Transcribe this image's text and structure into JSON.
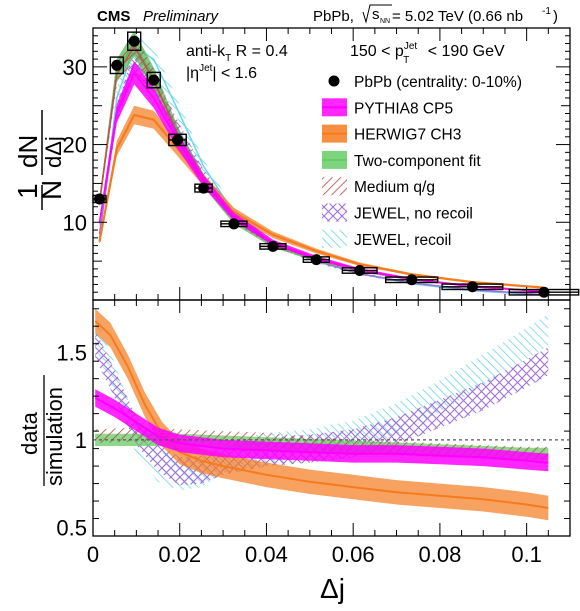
{
  "header": {
    "experiment": "CMS",
    "status": "Preliminary",
    "dataset_prefix": "PbPb, ",
    "sqrt_s": "s",
    "sqrt_s_sub": "NN",
    "energy_lumi": " = 5.02 TeV (0.66 nb",
    "lumi_exp": "-1",
    "close_paren": ")"
  },
  "annotations": {
    "algo_pre": "anti-k",
    "algo_sub": "T",
    "algo_post": " R = 0.4",
    "eta_pre": "|η",
    "eta_sup": "Jet",
    "eta_post": "| < 1.6",
    "pt_pre": "150 < p",
    "pt_sup": "Jet",
    "pt_sub": "T",
    "pt_post": " < 190 GeV"
  },
  "legend": [
    {
      "label": "PbPb (centrality: 0-10%)",
      "style": "marker",
      "color": "#000000"
    },
    {
      "label": "PYTHIA8 CP5",
      "style": "band",
      "color": "#ff00ff"
    },
    {
      "label": "HERWIG7 CH3",
      "style": "band",
      "color": "#f57b1e"
    },
    {
      "label": "Two-component fit",
      "style": "band",
      "color": "#66cc66"
    },
    {
      "label": "Medium q/g",
      "style": "hatch-diag",
      "color": "#b84a4a"
    },
    {
      "label": "JEWEL, no recoil",
      "style": "hatch-cross",
      "color": "#a070d8"
    },
    {
      "label": "JEWEL, recoil",
      "style": "hatch-diag",
      "color": "#6ad6ea"
    }
  ],
  "chart_data": [
    {
      "type": "line",
      "panel": "distribution",
      "ylabel_num": "1",
      "ylabel_den": "N",
      "ylabel_dnum": "dN",
      "ylabel_dden": "dΔj",
      "xlim": [
        0,
        0.11
      ],
      "ylim": [
        0,
        35
      ],
      "yticks": [
        10,
        20,
        30
      ],
      "data_x": [
        0.0015,
        0.0055,
        0.0095,
        0.014,
        0.0195,
        0.0255,
        0.0325,
        0.0415,
        0.0515,
        0.0615,
        0.0735,
        0.0875,
        0.104
      ],
      "data_xerr": [
        0.0015,
        0.0015,
        0.0015,
        0.0015,
        0.002,
        0.002,
        0.003,
        0.003,
        0.003,
        0.004,
        0.006,
        0.007,
        0.008
      ],
      "data_y": [
        13.0,
        30.2,
        33.3,
        28.3,
        20.6,
        14.4,
        9.8,
        6.9,
        5.2,
        3.8,
        2.6,
        1.7,
        1.0
      ],
      "series": [
        {
          "name": "PYTHIA8 CP5",
          "color": "#ff00ff",
          "x": [
            0.0015,
            0.0055,
            0.0095,
            0.014,
            0.0195,
            0.0255,
            0.0325,
            0.0415,
            0.0515,
            0.0615,
            0.0735,
            0.0875,
            0.104
          ],
          "y": [
            10.0,
            24.0,
            29.2,
            26.0,
            20.5,
            15.3,
            10.7,
            7.4,
            5.4,
            3.9,
            2.7,
            1.7,
            1.1
          ]
        },
        {
          "name": "HERWIG7 CH3",
          "color": "#f57b1e",
          "x": [
            0.0015,
            0.0055,
            0.0095,
            0.014,
            0.0195,
            0.0255,
            0.0325,
            0.0415,
            0.0515,
            0.0615,
            0.0735,
            0.0875,
            0.104
          ],
          "y": [
            7.5,
            19.5,
            23.8,
            23.2,
            19.5,
            15.4,
            11.3,
            8.4,
            6.3,
            4.6,
            3.3,
            2.3,
            1.6
          ]
        },
        {
          "name": "Two-component fit",
          "color": "#55bb55",
          "x": [
            0.0015,
            0.0055,
            0.0095,
            0.014,
            0.0195,
            0.0255,
            0.0325,
            0.0415,
            0.0515,
            0.0615,
            0.0735,
            0.0875,
            0.104
          ],
          "y": [
            12.6,
            29.5,
            33.0,
            28.5,
            21.3,
            15.3,
            10.3,
            7.1,
            5.2,
            3.8,
            2.6,
            1.8,
            1.1
          ]
        },
        {
          "name": "Medium q/g",
          "color": "#c05050",
          "x": [
            0.0015,
            0.0055,
            0.0095,
            0.014,
            0.0195,
            0.0255,
            0.0325,
            0.0415,
            0.0515,
            0.0615,
            0.0735,
            0.0875,
            0.104
          ],
          "y": [
            12.5,
            29.0,
            32.6,
            28.3,
            21.4,
            15.4,
            10.5,
            7.2,
            5.3,
            3.9,
            2.7,
            1.8,
            1.1
          ]
        },
        {
          "name": "JEWEL, no recoil",
          "color": "#a070d8",
          "x": [
            0.0015,
            0.0055,
            0.0095,
            0.014,
            0.0195,
            0.0255,
            0.0325,
            0.0415,
            0.0515,
            0.0615,
            0.0735,
            0.0875,
            0.104
          ],
          "y": [
            8.5,
            24.0,
            30.5,
            28.0,
            22.0,
            16.0,
            10.8,
            7.3,
            5.0,
            3.4,
            2.2,
            1.3,
            0.7
          ]
        },
        {
          "name": "JEWEL, recoil",
          "color": "#6ad6ea",
          "x": [
            0.0015,
            0.0055,
            0.0095,
            0.014,
            0.0195,
            0.0255,
            0.0325,
            0.0415,
            0.0515,
            0.0615,
            0.0735,
            0.0875,
            0.104
          ],
          "y": [
            8.0,
            26.0,
            32.5,
            31.0,
            24.5,
            17.2,
            11.2,
            7.3,
            5.0,
            3.4,
            2.1,
            1.2,
            0.6
          ]
        }
      ],
      "band_halfwidth_fraction": 0.05
    },
    {
      "type": "line",
      "panel": "ratio",
      "ylabel_num": "data",
      "ylabel_den": "simulation",
      "xlabel": "Δj",
      "xlim": [
        0,
        0.11
      ],
      "ylim": [
        0.45,
        1.8
      ],
      "yticks": [
        0.5,
        1,
        1.5
      ],
      "ytick_labels": [
        "0.5",
        "1",
        "1.5"
      ],
      "xticks": [
        0,
        0.02,
        0.04,
        0.06,
        0.08,
        0.1
      ],
      "xtick_labels": [
        "0",
        "0.02",
        "0.04",
        "0.06",
        "0.08",
        "0.1"
      ],
      "reference_line": 1,
      "series": [
        {
          "name": "PYTHIA8 CP5",
          "color": "#ff00ff",
          "halfwidth": 0.05,
          "x": [
            0.0005,
            0.005,
            0.01,
            0.015,
            0.02,
            0.03,
            0.04,
            0.05,
            0.06,
            0.07,
            0.08,
            0.09,
            0.1,
            0.105
          ],
          "y": [
            1.24,
            1.18,
            1.1,
            1.02,
            0.98,
            0.95,
            0.94,
            0.93,
            0.92,
            0.92,
            0.91,
            0.9,
            0.88,
            0.87
          ]
        },
        {
          "name": "HERWIG7 CH3",
          "color": "#f57b1e",
          "halfwidth": 0.07,
          "x": [
            0.0005,
            0.004,
            0.008,
            0.012,
            0.016,
            0.02,
            0.025,
            0.03,
            0.04,
            0.05,
            0.06,
            0.07,
            0.08,
            0.09,
            0.1,
            0.105
          ],
          "y": [
            1.68,
            1.6,
            1.42,
            1.2,
            1.03,
            0.93,
            0.88,
            0.85,
            0.8,
            0.76,
            0.73,
            0.7,
            0.68,
            0.66,
            0.63,
            0.61
          ]
        },
        {
          "name": "Two-component fit",
          "color": "#66cc66",
          "halfwidth": 0.035,
          "x": [
            0.0005,
            0.01,
            0.02,
            0.03,
            0.04,
            0.05,
            0.06,
            0.07,
            0.08,
            0.09,
            0.1,
            0.105
          ],
          "y": [
            1.0,
            1.0,
            1.0,
            0.99,
            0.98,
            0.97,
            0.96,
            0.95,
            0.94,
            0.93,
            0.92,
            0.92
          ]
        },
        {
          "name": "Medium q/g",
          "color": "#c05050",
          "halfwidth": 0.04,
          "x": [
            0.0005,
            0.01,
            0.02,
            0.03,
            0.04,
            0.05,
            0.06,
            0.07,
            0.08,
            0.09,
            0.1,
            0.105
          ],
          "y": [
            1.02,
            1.03,
            1.02,
            1.01,
            1.0,
            0.98,
            0.96,
            0.95,
            0.94,
            0.93,
            0.92,
            0.92
          ]
        },
        {
          "name": "JEWEL, no recoil",
          "color": "#a070d8",
          "halfwidth": 0.08,
          "x": [
            0.0005,
            0.005,
            0.01,
            0.015,
            0.02,
            0.025,
            0.03,
            0.04,
            0.05,
            0.06,
            0.07,
            0.08,
            0.09,
            0.1,
            0.105
          ],
          "y": [
            1.55,
            1.32,
            1.05,
            0.9,
            0.82,
            0.83,
            0.88,
            0.93,
            0.95,
            0.98,
            1.05,
            1.15,
            1.25,
            1.38,
            1.45
          ]
        },
        {
          "name": "JEWEL, recoil",
          "color": "#6ad6ea",
          "halfwidth": 0.09,
          "x": [
            0.0005,
            0.005,
            0.01,
            0.015,
            0.02,
            0.025,
            0.03,
            0.04,
            0.05,
            0.06,
            0.07,
            0.08,
            0.09,
            0.1,
            0.105
          ],
          "y": [
            1.62,
            1.35,
            1.0,
            0.85,
            0.8,
            0.82,
            0.9,
            0.95,
            0.97,
            1.02,
            1.12,
            1.25,
            1.4,
            1.55,
            1.63
          ]
        }
      ]
    }
  ]
}
